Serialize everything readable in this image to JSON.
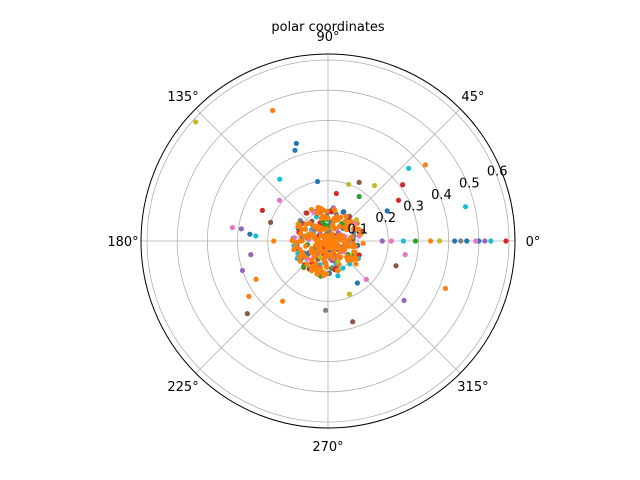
{
  "chart_data": {
    "type": "scatter",
    "projection": "polar",
    "title": "polar coordinates",
    "theta_tick_labels": [
      "0°",
      "45°",
      "90°",
      "135°",
      "180°",
      "225°",
      "270°",
      "315°"
    ],
    "theta_ticks_deg": [
      0,
      45,
      90,
      135,
      180,
      225,
      270,
      315
    ],
    "r_tick_labels": [
      "0.1",
      "0.2",
      "0.3",
      "0.4",
      "0.5",
      "0.6"
    ],
    "r_ticks": [
      0.1,
      0.2,
      0.3,
      0.4,
      0.5,
      0.6
    ],
    "rlim": [
      0,
      0.62
    ],
    "grid": true,
    "legend": "none",
    "palette": [
      "#1f77b4",
      "#ff7f0e",
      "#2ca02c",
      "#d62728",
      "#9467bd",
      "#8c564b",
      "#e377c2",
      "#7f7f7f",
      "#bcbd22",
      "#17becf"
    ],
    "points": [
      {
        "theta": 0,
        "r": 0.59,
        "color": "#d62728"
      },
      {
        "theta": 0,
        "r": 0.54,
        "color": "#17becf"
      },
      {
        "theta": 0,
        "r": 0.52,
        "color": "#9467bd"
      },
      {
        "theta": 0,
        "r": 0.5,
        "color": "#1f77b4"
      },
      {
        "theta": 0,
        "r": 0.49,
        "color": "#e377c2"
      },
      {
        "theta": 0,
        "r": 0.46,
        "color": "#1f77b4"
      },
      {
        "theta": 0,
        "r": 0.44,
        "color": "#7f7f7f"
      },
      {
        "theta": 0,
        "r": 0.42,
        "color": "#1f77b4"
      },
      {
        "theta": 0,
        "r": 0.37,
        "color": "#bcbd22"
      },
      {
        "theta": 0,
        "r": 0.34,
        "color": "#ff7f0e"
      },
      {
        "theta": 0,
        "r": 0.29,
        "color": "#2ca02c"
      },
      {
        "theta": 0,
        "r": 0.25,
        "color": "#17becf"
      },
      {
        "theta": 0,
        "r": 0.21,
        "color": "#e377c2"
      },
      {
        "theta": 0,
        "r": 0.18,
        "color": "#9467bd"
      },
      {
        "theta": 14,
        "r": 0.47,
        "color": "#17becf"
      },
      {
        "theta": 38,
        "r": 0.41,
        "color": "#ff7f0e"
      },
      {
        "theta": 42,
        "r": 0.36,
        "color": "#17becf"
      },
      {
        "theta": 37,
        "r": 0.31,
        "color": "#d62728"
      },
      {
        "theta": 30,
        "r": 0.27,
        "color": "#d62728"
      },
      {
        "theta": 50,
        "r": 0.24,
        "color": "#bcbd22"
      },
      {
        "theta": 27,
        "r": 0.22,
        "color": "#1f77b4"
      },
      {
        "theta": 55,
        "r": 0.18,
        "color": "#2ca02c"
      },
      {
        "theta": 62,
        "r": 0.22,
        "color": "#8c564b"
      },
      {
        "theta": 70,
        "r": 0.2,
        "color": "#bcbd22"
      },
      {
        "theta": 80,
        "r": 0.16,
        "color": "#d62728"
      },
      {
        "theta": 100,
        "r": 0.2,
        "color": "#1f77b4"
      },
      {
        "theta": 108,
        "r": 0.34,
        "color": "#1f77b4"
      },
      {
        "theta": 110,
        "r": 0.32,
        "color": "#1f77b4"
      },
      {
        "theta": 113,
        "r": 0.47,
        "color": "#ff7f0e"
      },
      {
        "theta": 128,
        "r": 0.26,
        "color": "#17becf"
      },
      {
        "theta": 138,
        "r": 0.59,
        "color": "#bcbd22"
      },
      {
        "theta": 140,
        "r": 0.21,
        "color": "#e377c2"
      },
      {
        "theta": 155,
        "r": 0.24,
        "color": "#d62728"
      },
      {
        "theta": 162,
        "r": 0.2,
        "color": "#8c564b"
      },
      {
        "theta": 172,
        "r": 0.32,
        "color": "#e377c2"
      },
      {
        "theta": 172,
        "r": 0.29,
        "color": "#9467bd"
      },
      {
        "theta": 175,
        "r": 0.26,
        "color": "#1f77b4"
      },
      {
        "theta": 176,
        "r": 0.24,
        "color": "#17becf"
      },
      {
        "theta": 180,
        "r": 0.18,
        "color": "#ff7f0e"
      },
      {
        "theta": 190,
        "r": 0.26,
        "color": "#9467bd"
      },
      {
        "theta": 199,
        "r": 0.3,
        "color": "#9467bd"
      },
      {
        "theta": 208,
        "r": 0.27,
        "color": "#ff7f0e"
      },
      {
        "theta": 215,
        "r": 0.32,
        "color": "#ff7f0e"
      },
      {
        "theta": 222,
        "r": 0.36,
        "color": "#8c564b"
      },
      {
        "theta": 233,
        "r": 0.25,
        "color": "#ff7f0e"
      },
      {
        "theta": 268,
        "r": 0.23,
        "color": "#7f7f7f"
      },
      {
        "theta": 287,
        "r": 0.28,
        "color": "#8c564b"
      },
      {
        "theta": 292,
        "r": 0.19,
        "color": "#bcbd22"
      },
      {
        "theta": 305,
        "r": 0.17,
        "color": "#1f77b4"
      },
      {
        "theta": 315,
        "r": 0.18,
        "color": "#e377c2"
      },
      {
        "theta": 322,
        "r": 0.32,
        "color": "#9467bd"
      },
      {
        "theta": 338,
        "r": 0.42,
        "color": "#ff7f0e"
      },
      {
        "theta": 350,
        "r": 0.26,
        "color": "#e377c2"
      },
      {
        "theta": 340,
        "r": 0.24,
        "color": "#8c564b"
      }
    ],
    "dense_cluster": {
      "r_max": 0.12,
      "count": 420,
      "dominant_color": "#ff7f0e"
    }
  }
}
